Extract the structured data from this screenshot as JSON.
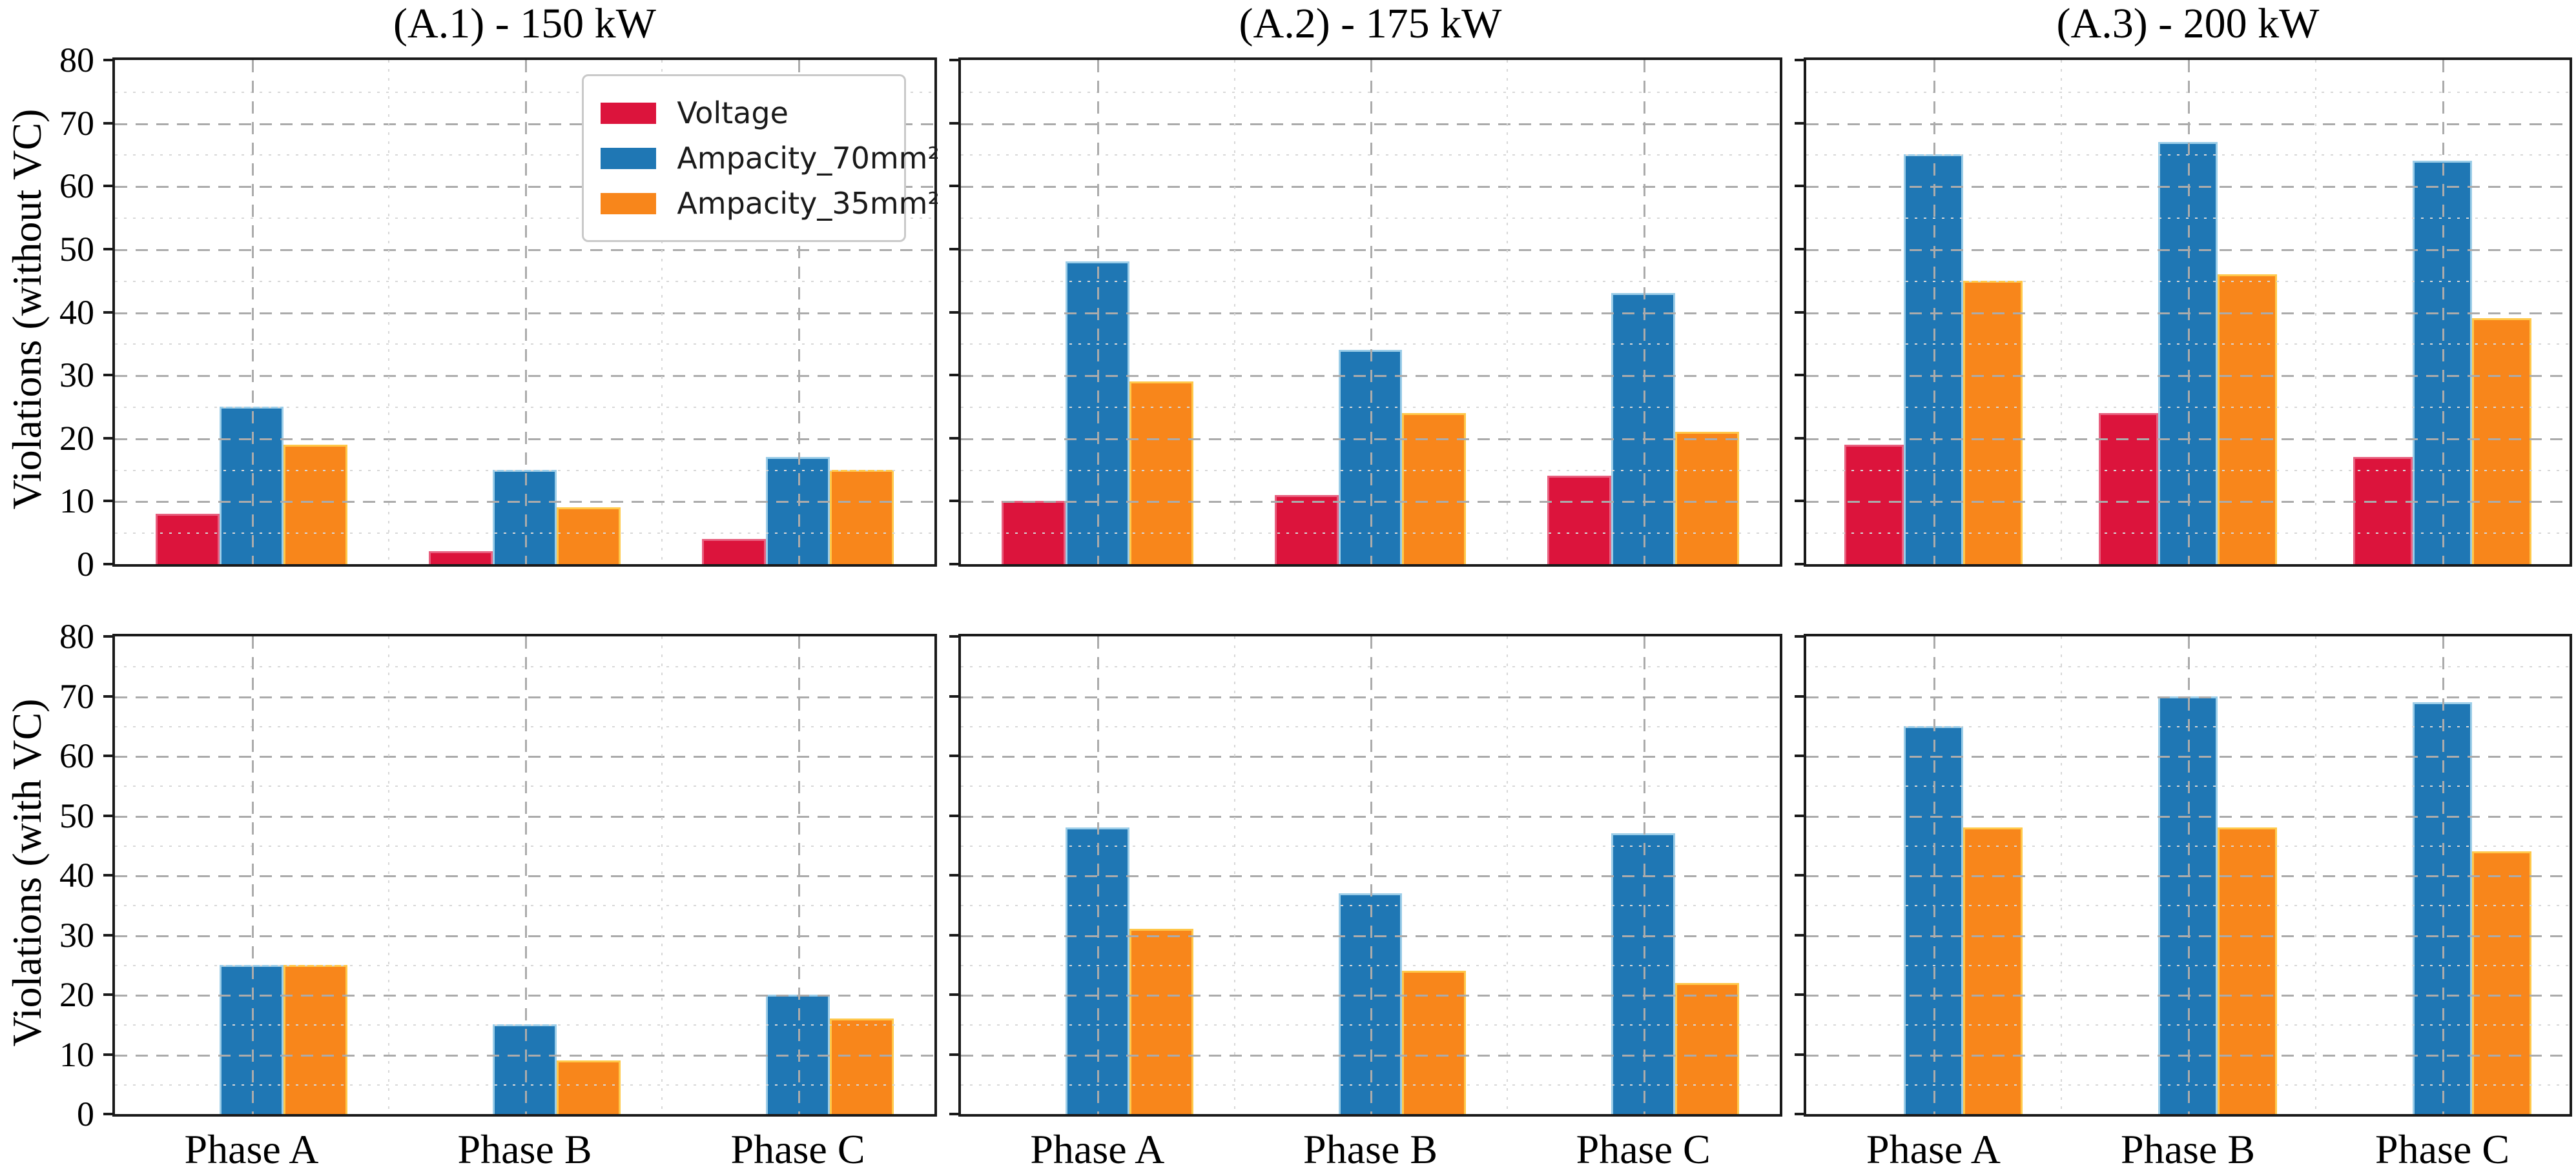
{
  "figure": {
    "background": "#ffffff",
    "rows": [
      {
        "ylabel": "Violations (without VC)"
      },
      {
        "ylabel": "Violations (with VC)"
      }
    ]
  },
  "chart_data": {
    "type": "bar",
    "categories": [
      "Phase A",
      "Phase B",
      "Phase C"
    ],
    "ylim": [
      0,
      80
    ],
    "yticks": [
      0,
      10,
      20,
      30,
      40,
      50,
      60,
      70,
      80
    ],
    "grid": {
      "major_style": "dashed",
      "minor_style": "dotted",
      "grid_on": true,
      "grid_above_bars": true
    },
    "legend": {
      "position": "upper-right of first subplot"
    },
    "series_meta": [
      {
        "name": "Voltage",
        "color": "#DC143C",
        "edge": "#e8607f"
      },
      {
        "name": "Ampacity_70mm²",
        "color": "#1F77B4",
        "edge": "#9bcde8"
      },
      {
        "name": "Ampacity_35mm²",
        "color": "#F8861B",
        "edge": "#ffc84a"
      }
    ],
    "subplots": [
      {
        "id": "a1",
        "row": 0,
        "col": 0,
        "title": "(A.1) - 150 kW",
        "ylabel": "Violations (without VC)",
        "legend": true,
        "series": [
          {
            "name": "Voltage",
            "values": [
              8,
              2,
              4
            ]
          },
          {
            "name": "Ampacity_70mm²",
            "values": [
              25,
              15,
              17
            ]
          },
          {
            "name": "Ampacity_35mm²",
            "values": [
              19,
              9,
              15
            ]
          }
        ]
      },
      {
        "id": "a2",
        "row": 0,
        "col": 1,
        "title": "(A.2) - 175 kW",
        "ylabel": "Violations (without VC)",
        "legend": false,
        "series": [
          {
            "name": "Voltage",
            "values": [
              10,
              11,
              14
            ]
          },
          {
            "name": "Ampacity_70mm²",
            "values": [
              48,
              34,
              43
            ]
          },
          {
            "name": "Ampacity_35mm²",
            "values": [
              29,
              24,
              21
            ]
          }
        ]
      },
      {
        "id": "a3",
        "row": 0,
        "col": 2,
        "title": "(A.3) - 200 kW",
        "ylabel": "Violations (without VC)",
        "legend": false,
        "series": [
          {
            "name": "Voltage",
            "values": [
              19,
              24,
              17
            ]
          },
          {
            "name": "Ampacity_70mm²",
            "values": [
              65,
              67,
              64
            ]
          },
          {
            "name": "Ampacity_35mm²",
            "values": [
              45,
              46,
              39
            ]
          }
        ]
      },
      {
        "id": "b1",
        "row": 1,
        "col": 0,
        "title": "",
        "ylabel": "Violations (with VC)",
        "legend": false,
        "series": [
          {
            "name": "Voltage",
            "values": [
              0,
              0,
              0
            ]
          },
          {
            "name": "Ampacity_70mm²",
            "values": [
              25,
              15,
              20
            ]
          },
          {
            "name": "Ampacity_35mm²",
            "values": [
              25,
              9,
              16
            ]
          }
        ]
      },
      {
        "id": "b2",
        "row": 1,
        "col": 1,
        "title": "",
        "ylabel": "Violations (with VC)",
        "legend": false,
        "series": [
          {
            "name": "Voltage",
            "values": [
              0,
              0,
              0
            ]
          },
          {
            "name": "Ampacity_70mm²",
            "values": [
              48,
              37,
              47
            ]
          },
          {
            "name": "Ampacity_35mm²",
            "values": [
              31,
              24,
              22
            ]
          }
        ]
      },
      {
        "id": "b3",
        "row": 1,
        "col": 2,
        "title": "",
        "ylabel": "Violations (with VC)",
        "legend": false,
        "series": [
          {
            "name": "Voltage",
            "values": [
              0,
              0,
              0
            ]
          },
          {
            "name": "Ampacity_70mm²",
            "values": [
              65,
              70,
              69
            ]
          },
          {
            "name": "Ampacity_35mm²",
            "values": [
              48,
              48,
              44
            ]
          }
        ]
      }
    ]
  }
}
